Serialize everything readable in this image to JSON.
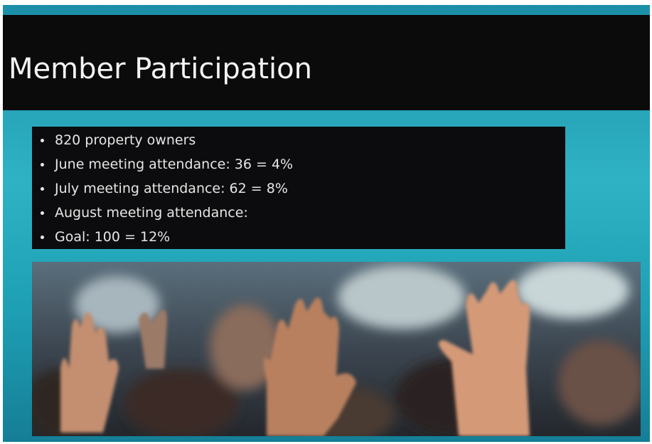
{
  "title": "Member Participation",
  "bullets": [
    "820 property owners",
    "June meeting attendance: 36 = 4%",
    "July meeting attendance: 62 = 8%",
    "August meeting attendance:",
    "Goal: 100 = 12%"
  ]
}
